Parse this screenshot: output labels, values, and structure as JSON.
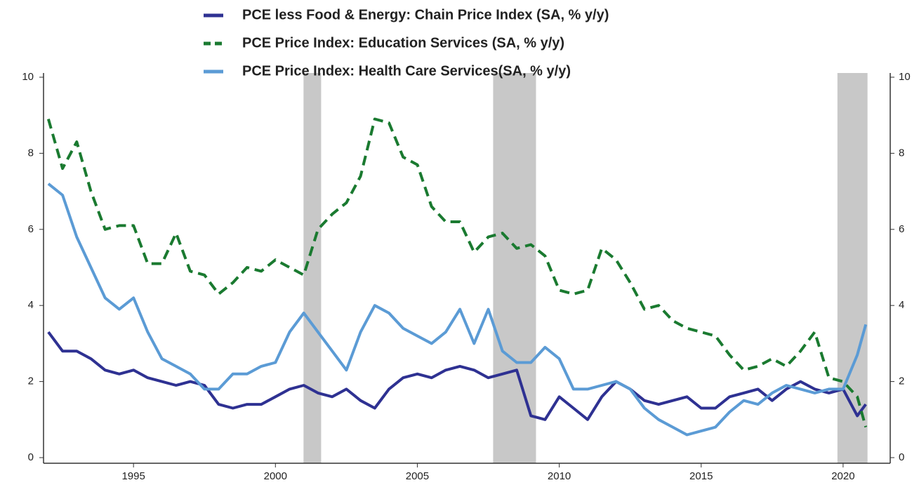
{
  "chart_data": {
    "type": "line",
    "x": [
      1992,
      1992.5,
      1993,
      1993.5,
      1994,
      1994.5,
      1995,
      1995.5,
      1996,
      1996.5,
      1997,
      1997.5,
      1998,
      1998.5,
      1999,
      1999.5,
      2000,
      2000.5,
      2001,
      2001.5,
      2002,
      2002.5,
      2003,
      2003.5,
      2004,
      2004.5,
      2005,
      2005.5,
      2006,
      2006.5,
      2007,
      2007.5,
      2008,
      2008.5,
      2009,
      2009.5,
      2010,
      2010.5,
      2011,
      2011.5,
      2012,
      2012.5,
      2013,
      2013.5,
      2014,
      2014.5,
      2015,
      2015.5,
      2016,
      2016.5,
      2017,
      2017.5,
      2018,
      2018.5,
      2019,
      2019.5,
      2020,
      2020.5,
      2020.8
    ],
    "series": [
      {
        "name": "PCE less Food & Energy: Chain Price Index (SA, % y/y)",
        "color": "#2e3192",
        "dash": false,
        "values": [
          3.3,
          2.8,
          2.8,
          2.6,
          2.3,
          2.2,
          2.3,
          2.1,
          2.0,
          1.9,
          2.0,
          1.9,
          1.4,
          1.3,
          1.4,
          1.4,
          1.6,
          1.8,
          1.9,
          1.7,
          1.6,
          1.8,
          1.5,
          1.3,
          1.8,
          2.1,
          2.2,
          2.1,
          2.3,
          2.4,
          2.3,
          2.1,
          2.2,
          2.3,
          1.1,
          1.0,
          1.6,
          1.3,
          1.0,
          1.6,
          2.0,
          1.8,
          1.5,
          1.4,
          1.5,
          1.6,
          1.3,
          1.3,
          1.6,
          1.7,
          1.8,
          1.5,
          1.8,
          2.0,
          1.8,
          1.7,
          1.8,
          1.1,
          1.4
        ]
      },
      {
        "name": "PCE Price Index: Education Services (SA, % y/y)",
        "color": "#1a7a30",
        "dash": true,
        "values": [
          8.9,
          7.6,
          8.3,
          7.0,
          6.0,
          6.1,
          6.1,
          5.1,
          5.1,
          5.9,
          4.9,
          4.8,
          4.3,
          4.6,
          5.0,
          4.9,
          5.2,
          5.0,
          4.8,
          6.0,
          6.4,
          6.7,
          7.4,
          8.9,
          8.8,
          7.9,
          7.7,
          6.6,
          6.2,
          6.2,
          5.4,
          5.8,
          5.9,
          5.5,
          5.6,
          5.3,
          4.4,
          4.3,
          4.4,
          5.5,
          5.2,
          4.6,
          3.9,
          4.0,
          3.6,
          3.4,
          3.3,
          3.2,
          2.7,
          2.3,
          2.4,
          2.6,
          2.4,
          2.8,
          3.3,
          2.1,
          2.0,
          1.6,
          0.8
        ]
      },
      {
        "name": "PCE Price Index: Health Care Services(SA, % y/y)",
        "color": "#5b9bd5",
        "dash": false,
        "values": [
          7.2,
          6.9,
          5.8,
          5.0,
          4.2,
          3.9,
          4.2,
          3.3,
          2.6,
          2.4,
          2.2,
          1.8,
          1.8,
          2.2,
          2.2,
          2.4,
          2.5,
          3.3,
          3.8,
          3.3,
          2.8,
          2.3,
          3.3,
          4.0,
          3.8,
          3.4,
          3.2,
          3.0,
          3.3,
          3.9,
          3.0,
          3.9,
          2.8,
          2.5,
          2.5,
          2.9,
          2.6,
          1.8,
          1.8,
          1.9,
          2.0,
          1.8,
          1.3,
          1.0,
          0.8,
          0.6,
          0.7,
          0.8,
          1.2,
          1.5,
          1.4,
          1.7,
          1.9,
          1.8,
          1.7,
          1.8,
          1.8,
          2.7,
          3.5
        ]
      }
    ],
    "recessions": [
      {
        "start": 2000.99,
        "end": 2001.61
      },
      {
        "start": 2007.67,
        "end": 2009.18
      },
      {
        "start": 2019.8,
        "end": 2020.86
      }
    ],
    "recession_color": "#c8c8c8",
    "xlim": [
      1991.83,
      2021.66
    ],
    "xticks": [
      1995,
      2000,
      2005,
      2010,
      2015,
      2020
    ],
    "ylim": [
      0,
      10
    ],
    "yticks": [
      0,
      2,
      4,
      6,
      8,
      10
    ],
    "y2lim": [
      0,
      10
    ],
    "y2ticks": [
      0,
      2,
      4,
      6,
      8,
      10
    ]
  }
}
